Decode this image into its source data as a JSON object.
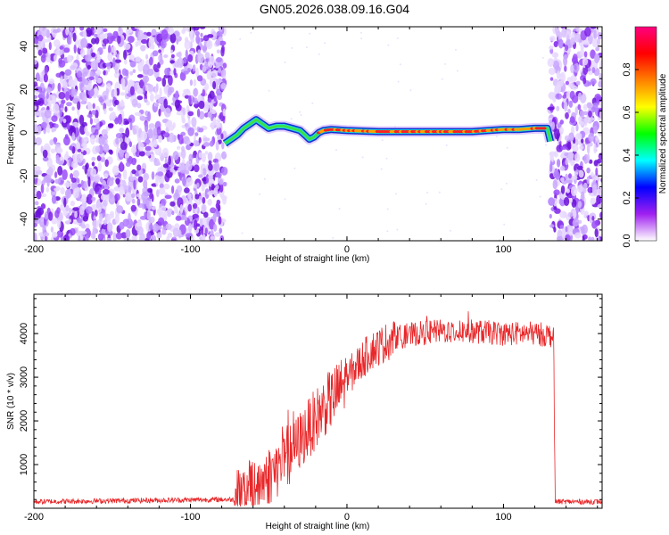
{
  "title": "GN05.2026.038.09.16.G04",
  "chart_data": [
    {
      "type": "heatmap",
      "panel": "top",
      "xlabel": "Height of straight line (km)",
      "ylabel": "Frequency (Hz)",
      "xlim": [
        -200,
        163
      ],
      "ylim": [
        -50,
        49
      ],
      "xticks": [
        -200,
        -100,
        0,
        100
      ],
      "yticks": [
        -40,
        -20,
        0,
        20,
        40
      ],
      "noise_regions_km": [
        [
          -200,
          -78
        ],
        [
          130,
          163
        ]
      ],
      "signal_track": {
        "x": [
          -78,
          -74,
          -70,
          -66,
          -62,
          -58,
          -54,
          -50,
          -45,
          -40,
          -35,
          -30,
          -27,
          -24,
          -21,
          -18,
          -15,
          -10,
          0,
          20,
          40,
          60,
          80,
          90,
          100,
          110,
          120,
          128,
          130
        ],
        "frequency": [
          -5,
          -3,
          -1,
          2,
          4,
          6,
          4,
          2,
          3,
          3,
          2,
          1,
          -1,
          -3,
          -2,
          0,
          1,
          1.5,
          1,
          0.5,
          0.5,
          0.5,
          0.5,
          1,
          1.5,
          1.5,
          2,
          2,
          -4
        ]
      },
      "colorbar": {
        "label": "Normalized spectral amplitude",
        "range": [
          0.0,
          1.0
        ],
        "ticks": [
          "0.0",
          "0.2",
          "0.4",
          "0.6",
          "0.8"
        ],
        "colors": [
          "#ffffff",
          "#a020f0",
          "#0000ff",
          "#00ffff",
          "#00ff00",
          "#ffff00",
          "#ff8000",
          "#ff0000",
          "#ff0080"
        ]
      }
    },
    {
      "type": "line",
      "panel": "bottom",
      "xlabel": "Height of straight line (km)",
      "ylabel": "SNR (10 * v/v)",
      "xlim": [
        -200,
        163
      ],
      "ylim": [
        0,
        4900
      ],
      "xticks": [
        -200,
        -100,
        0,
        100
      ],
      "yticks": [
        1000,
        2000,
        3000,
        4000
      ],
      "color": "#e8282a",
      "envelope": {
        "x": [
          -200,
          -80,
          -70,
          -62,
          -55,
          -45,
          -35,
          -25,
          -15,
          -5,
          5,
          15,
          30,
          45,
          60,
          80,
          100,
          120,
          132,
          133,
          163
        ],
        "snr": [
          150,
          200,
          200,
          400,
          600,
          900,
          1300,
          1800,
          2300,
          2700,
          3200,
          3600,
          3900,
          4000,
          4050,
          4050,
          4000,
          4000,
          3950,
          150,
          150
        ]
      }
    }
  ]
}
